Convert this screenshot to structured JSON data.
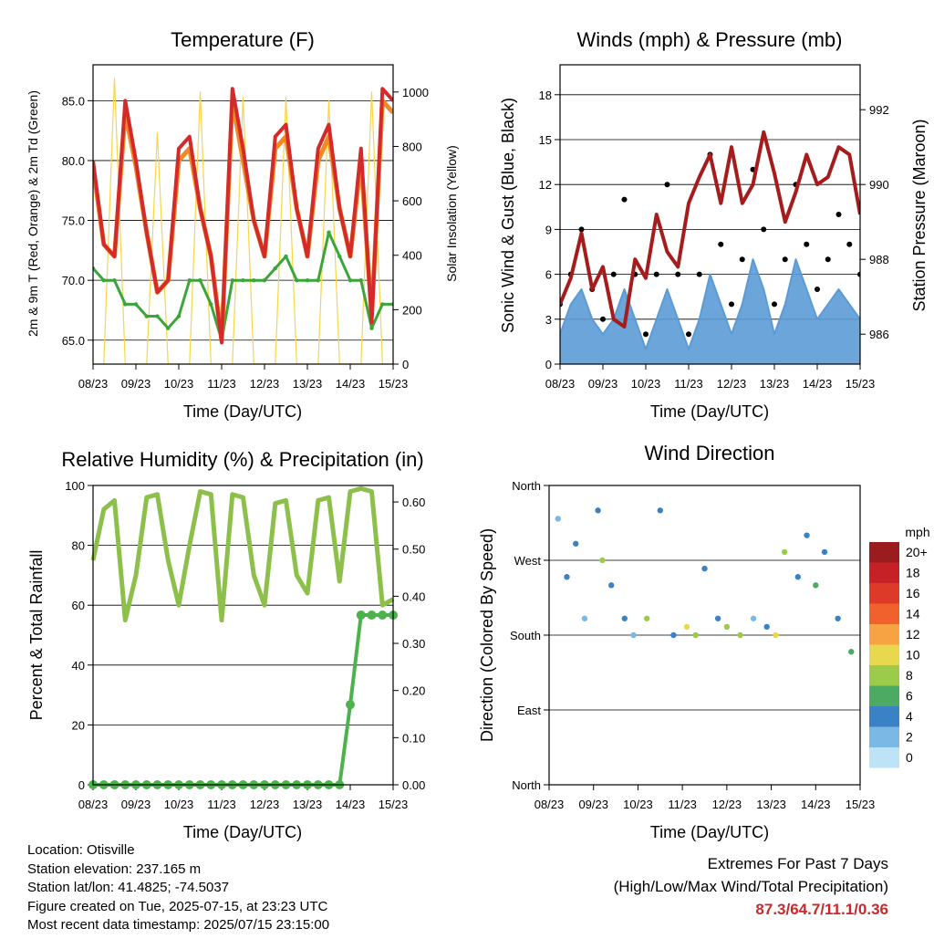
{
  "x_ticks": [
    "08/23",
    "09/23",
    "10/23",
    "11/23",
    "12/23",
    "13/23",
    "14/23",
    "15/23"
  ],
  "panels": {
    "temperature": {
      "title": "Temperature (F)",
      "xlabel": "Time (Day/UTC)",
      "ylabel_left": "2m & 9m T (Red, Orange) & 2m Td (Green)",
      "ylabel_right": "Solar Insolation (Yellow)",
      "y_ticks": [
        "65.0",
        "70.0",
        "75.0",
        "80.0",
        "85.0"
      ],
      "y2_ticks": [
        "0",
        "200",
        "400",
        "600",
        "800",
        "1000"
      ]
    },
    "winds": {
      "title": "Winds (mph) & Pressure (mb)",
      "xlabel": "Time (Day/UTC)",
      "ylabel_left": "Sonic Wind & Gust (Blue, Black)",
      "ylabel_right": "Station Pressure (Maroon)",
      "y_ticks": [
        "0",
        "3",
        "6",
        "9",
        "12",
        "15",
        "18"
      ],
      "y2_ticks": [
        "986",
        "988",
        "990",
        "992"
      ]
    },
    "humidity": {
      "title": "Relative Humidity (%) & Precipitation (in)",
      "xlabel": "Time (Day/UTC)",
      "ylabel_left": "Percent & Total Rainfall",
      "y_ticks": [
        "0",
        "20",
        "40",
        "60",
        "80",
        "100"
      ],
      "y2_ticks": [
        "0.00",
        "0.10",
        "0.20",
        "0.30",
        "0.40",
        "0.50",
        "0.60"
      ]
    },
    "direction": {
      "title": "Wind Direction",
      "xlabel": "Time (Day/UTC)",
      "ylabel_left": "Direction (Colored By Speed)",
      "y_ticks": [
        "North",
        "East",
        "South",
        "West",
        "North"
      ],
      "legend_title": "mph",
      "legend_labels": [
        "20+",
        "18",
        "16",
        "14",
        "12",
        "10",
        "8",
        "6",
        "4",
        "2",
        "0"
      ],
      "legend_colors": [
        "#9b1c1f",
        "#c52127",
        "#dd3a2a",
        "#f0612d",
        "#f7a343",
        "#e8d84e",
        "#9ccb4c",
        "#4caa63",
        "#3b82c4",
        "#7bb8e5",
        "#bfe3f6"
      ]
    }
  },
  "chart_data": [
    {
      "type": "line",
      "title": "Temperature (F)",
      "xlabel": "Time (Day/UTC)",
      "ylabel": "2m & 9m T (Red, Orange) & 2m Td (Green)",
      "ylabel2": "Solar Insolation (Yellow)",
      "ylim": [
        63,
        88
      ],
      "y2lim": [
        0,
        1100
      ],
      "x": [
        8.0,
        8.25,
        8.5,
        8.75,
        9.0,
        9.25,
        9.5,
        9.75,
        10.0,
        10.25,
        10.5,
        10.75,
        11.0,
        11.25,
        11.5,
        11.75,
        12.0,
        12.25,
        12.5,
        12.75,
        13.0,
        13.25,
        13.5,
        13.75,
        14.0,
        14.25,
        14.5,
        14.75,
        15.0
      ],
      "series": [
        {
          "name": "2m T",
          "color": "#d42a2a",
          "values": [
            80,
            73,
            72,
            85,
            80,
            74,
            69,
            70,
            81,
            82,
            76,
            72,
            64.8,
            86,
            81,
            75,
            72,
            82,
            83,
            76,
            72,
            81,
            83,
            76,
            72,
            81,
            66.5,
            86,
            85
          ]
        },
        {
          "name": "9m T",
          "color": "#f08a24",
          "values": [
            79.5,
            73,
            72,
            84,
            79.5,
            74,
            69,
            70,
            80,
            81,
            76,
            72,
            65,
            85,
            80,
            75,
            72,
            81,
            82,
            76,
            72,
            80,
            82,
            76,
            72,
            80,
            67,
            85,
            84
          ]
        },
        {
          "name": "2m Td",
          "color": "#3aa63a",
          "values": [
            71,
            70,
            70,
            68,
            68,
            67,
            67,
            66,
            67,
            70,
            70,
            68,
            65,
            70,
            70,
            70,
            70,
            71,
            72,
            70,
            70,
            70,
            74,
            72,
            70,
            70,
            66,
            68,
            68
          ]
        },
        {
          "name": "Solar Insolation",
          "color": "#f7d54a",
          "values": [
            0,
            0,
            1050,
            0,
            0,
            0,
            850,
            0,
            0,
            0,
            1000,
            0,
            0,
            0,
            980,
            0,
            0,
            0,
            980,
            0,
            0,
            0,
            970,
            0,
            0,
            0,
            1000,
            0,
            0
          ]
        }
      ]
    },
    {
      "type": "line",
      "title": "Winds (mph) & Pressure (mb)",
      "xlabel": "Time (Day/UTC)",
      "ylabel": "Sonic Wind & Gust (Blue, Black)",
      "ylabel2": "Station Pressure (Maroon)",
      "ylim": [
        0,
        20
      ],
      "y2lim": [
        985.2,
        993.2
      ],
      "x": [
        8.0,
        8.25,
        8.5,
        8.75,
        9.0,
        9.25,
        9.5,
        9.75,
        10.0,
        10.25,
        10.5,
        10.75,
        11.0,
        11.25,
        11.5,
        11.75,
        12.0,
        12.25,
        12.5,
        12.75,
        13.0,
        13.25,
        13.5,
        13.75,
        14.0,
        14.25,
        14.5,
        14.75,
        15.0
      ],
      "series": [
        {
          "name": "Sonic Wind",
          "color": "#5b9bd5",
          "values": [
            2,
            4,
            5,
            3,
            2,
            3,
            5,
            3,
            1,
            3,
            5,
            3,
            1,
            3,
            6,
            4,
            2,
            4,
            7,
            5,
            2,
            4,
            7,
            5,
            3,
            4,
            5,
            4,
            3
          ]
        },
        {
          "name": "Gust",
          "color": "#000000",
          "values": [
            4,
            6,
            9,
            5,
            3,
            6,
            11,
            6,
            2,
            6,
            12,
            6,
            2,
            6,
            14,
            8,
            4,
            7,
            13,
            9,
            4,
            7,
            12,
            8,
            5,
            7,
            10,
            8,
            6
          ]
        },
        {
          "name": "Station Pressure",
          "color": "#a61c1c",
          "values": [
            986.8,
            987.5,
            988.7,
            987.2,
            987.8,
            986.4,
            986.2,
            988.0,
            987.5,
            989.2,
            988.2,
            987.8,
            989.5,
            990.2,
            990.8,
            989.5,
            991.0,
            989.5,
            990.0,
            991.4,
            990.3,
            989.0,
            989.8,
            990.8,
            990.0,
            990.2,
            991.0,
            990.8,
            989.2
          ]
        }
      ]
    },
    {
      "type": "line",
      "title": "Relative Humidity (%) & Precipitation (in)",
      "xlabel": "Time (Day/UTC)",
      "ylabel": "Percent & Total Rainfall",
      "ylim": [
        0,
        100
      ],
      "y2lim": [
        0,
        0.635
      ],
      "x": [
        8.0,
        8.25,
        8.5,
        8.75,
        9.0,
        9.25,
        9.5,
        9.75,
        10.0,
        10.25,
        10.5,
        10.75,
        11.0,
        11.25,
        11.5,
        11.75,
        12.0,
        12.25,
        12.5,
        12.75,
        13.0,
        13.25,
        13.5,
        13.75,
        14.0,
        14.25,
        14.5,
        14.75,
        15.0
      ],
      "series": [
        {
          "name": "Relative Humidity",
          "color": "#8cc04b",
          "values": [
            75,
            92,
            95,
            55,
            70,
            96,
            97,
            75,
            60,
            80,
            98,
            97,
            55,
            97,
            96,
            70,
            60,
            94,
            95,
            70,
            64,
            95,
            96,
            68,
            98,
            99,
            98,
            60,
            62
          ]
        },
        {
          "name": "Total Rainfall",
          "color": "#4cb34c",
          "values": [
            0,
            0,
            0,
            0,
            0,
            0,
            0,
            0,
            0,
            0,
            0,
            0,
            0,
            0,
            0,
            0,
            0,
            0,
            0,
            0,
            0,
            0,
            0,
            0,
            0.17,
            0.36,
            0.36,
            0.36,
            0.36
          ]
        }
      ]
    },
    {
      "type": "scatter",
      "title": "Wind Direction",
      "xlabel": "Time (Day/UTC)",
      "ylabel": "Direction (Colored By Speed)",
      "y_categories": [
        "North",
        "East",
        "South",
        "West",
        "North"
      ],
      "colorbar_label": "mph",
      "x": [
        8.2,
        8.4,
        8.6,
        8.8,
        9.1,
        9.2,
        9.4,
        9.7,
        9.9,
        10.2,
        10.5,
        10.8,
        11.1,
        11.3,
        11.5,
        11.8,
        12.0,
        12.3,
        12.6,
        12.9,
        13.1,
        13.3,
        13.6,
        13.8,
        14.0,
        14.2,
        14.5,
        14.8
      ],
      "y_degrees": [
        320,
        250,
        290,
        200,
        330,
        270,
        240,
        200,
        180,
        200,
        330,
        180,
        190,
        180,
        260,
        200,
        190,
        180,
        200,
        190,
        180,
        280,
        250,
        300,
        240,
        280,
        200,
        160
      ],
      "speeds": [
        2,
        4,
        3,
        2,
        4,
        7,
        4,
        3,
        2,
        8,
        3,
        4,
        9,
        7,
        3,
        4,
        8,
        7,
        2,
        4,
        9,
        8,
        3,
        4,
        5,
        3,
        4,
        6
      ]
    }
  ],
  "station_info": [
    "Location: Otisville",
    "Station elevation: 237.165 m",
    "Station lat/lon: 41.4825; -74.5037",
    "Figure created on Tue, 2025-07-15, at 23:23 UTC",
    "Most recent data timestamp: 2025/07/15 23:15:00"
  ],
  "extremes": {
    "title": "Extremes For Past 7 Days",
    "subtitle": "(High/Low/Max Wind/Total Precipitation)",
    "values": "87.3/64.7/11.1/0.36"
  }
}
